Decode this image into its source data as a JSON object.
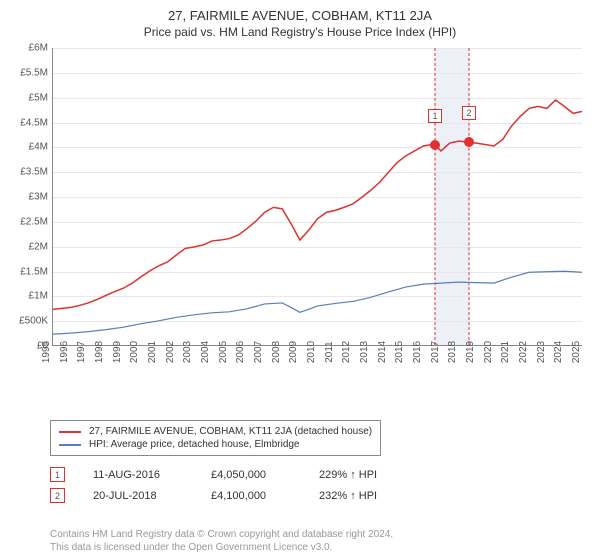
{
  "title": "27, FAIRMILE AVENUE, COBHAM, KT11 2JA",
  "subtitle": "Price paid vs. HM Land Registry's House Price Index (HPI)",
  "chart": {
    "type": "line",
    "background_color": "#ffffff",
    "grid_color": "#e8e8e8",
    "axis_color": "#888888",
    "label_fontsize": 10,
    "label_color": "#555555",
    "x_start_year": 1995,
    "x_end_year": 2025,
    "x_tick_step": 1,
    "ylim": [
      0,
      6000000
    ],
    "ytick_step": 500000,
    "ytick_labels": [
      "£0",
      "£500K",
      "£1M",
      "£1.5M",
      "£2M",
      "£2.5M",
      "£3M",
      "£3.5M",
      "£4M",
      "£4.5M",
      "£5M",
      "£5.5M",
      "£6M"
    ],
    "highlight_band": {
      "x_start": 2016.62,
      "x_end": 2018.55,
      "color": "#edf0f6"
    },
    "series": [
      {
        "id": "property",
        "label": "27, FAIRMILE AVENUE, COBHAM, KT11 2JA (detached house)",
        "color": "#e03030",
        "line_width": 1.5,
        "points": [
          [
            1995.0,
            720000
          ],
          [
            1995.5,
            740000
          ],
          [
            1996.0,
            760000
          ],
          [
            1996.5,
            800000
          ],
          [
            1997.0,
            850000
          ],
          [
            1997.5,
            920000
          ],
          [
            1998.0,
            1000000
          ],
          [
            1998.5,
            1080000
          ],
          [
            1999.0,
            1150000
          ],
          [
            1999.5,
            1250000
          ],
          [
            2000.0,
            1380000
          ],
          [
            2000.5,
            1500000
          ],
          [
            2001.0,
            1600000
          ],
          [
            2001.5,
            1680000
          ],
          [
            2002.0,
            1820000
          ],
          [
            2002.5,
            1950000
          ],
          [
            2003.0,
            1980000
          ],
          [
            2003.5,
            2020000
          ],
          [
            2004.0,
            2100000
          ],
          [
            2004.5,
            2120000
          ],
          [
            2005.0,
            2150000
          ],
          [
            2005.5,
            2220000
          ],
          [
            2006.0,
            2350000
          ],
          [
            2006.5,
            2500000
          ],
          [
            2007.0,
            2680000
          ],
          [
            2007.5,
            2780000
          ],
          [
            2008.0,
            2750000
          ],
          [
            2008.5,
            2450000
          ],
          [
            2009.0,
            2120000
          ],
          [
            2009.5,
            2320000
          ],
          [
            2010.0,
            2550000
          ],
          [
            2010.5,
            2680000
          ],
          [
            2011.0,
            2720000
          ],
          [
            2011.5,
            2780000
          ],
          [
            2012.0,
            2850000
          ],
          [
            2012.5,
            2980000
          ],
          [
            2013.0,
            3120000
          ],
          [
            2013.5,
            3280000
          ],
          [
            2014.0,
            3480000
          ],
          [
            2014.5,
            3680000
          ],
          [
            2015.0,
            3820000
          ],
          [
            2015.5,
            3920000
          ],
          [
            2016.0,
            4020000
          ],
          [
            2016.5,
            4050000
          ],
          [
            2016.62,
            4050000
          ],
          [
            2017.0,
            3920000
          ],
          [
            2017.5,
            4080000
          ],
          [
            2018.0,
            4120000
          ],
          [
            2018.55,
            4100000
          ],
          [
            2019.0,
            4080000
          ],
          [
            2019.5,
            4050000
          ],
          [
            2020.0,
            4020000
          ],
          [
            2020.5,
            4150000
          ],
          [
            2021.0,
            4420000
          ],
          [
            2021.5,
            4620000
          ],
          [
            2022.0,
            4780000
          ],
          [
            2022.5,
            4820000
          ],
          [
            2023.0,
            4780000
          ],
          [
            2023.5,
            4950000
          ],
          [
            2024.0,
            4820000
          ],
          [
            2024.5,
            4680000
          ],
          [
            2025.0,
            4720000
          ]
        ]
      },
      {
        "id": "hpi",
        "label": "HPI: Average price, detached house, Elmbridge",
        "color": "#5a7fb8",
        "line_width": 1.2,
        "points": [
          [
            1995.0,
            220000
          ],
          [
            1996.0,
            240000
          ],
          [
            1997.0,
            270000
          ],
          [
            1998.0,
            310000
          ],
          [
            1999.0,
            360000
          ],
          [
            2000.0,
            430000
          ],
          [
            2001.0,
            490000
          ],
          [
            2002.0,
            560000
          ],
          [
            2003.0,
            610000
          ],
          [
            2004.0,
            650000
          ],
          [
            2005.0,
            670000
          ],
          [
            2006.0,
            730000
          ],
          [
            2007.0,
            830000
          ],
          [
            2008.0,
            850000
          ],
          [
            2008.5,
            760000
          ],
          [
            2009.0,
            660000
          ],
          [
            2009.5,
            720000
          ],
          [
            2010.0,
            790000
          ],
          [
            2011.0,
            840000
          ],
          [
            2012.0,
            880000
          ],
          [
            2013.0,
            960000
          ],
          [
            2014.0,
            1070000
          ],
          [
            2015.0,
            1170000
          ],
          [
            2016.0,
            1230000
          ],
          [
            2017.0,
            1250000
          ],
          [
            2018.0,
            1270000
          ],
          [
            2019.0,
            1260000
          ],
          [
            2020.0,
            1250000
          ],
          [
            2021.0,
            1370000
          ],
          [
            2022.0,
            1470000
          ],
          [
            2023.0,
            1480000
          ],
          [
            2024.0,
            1490000
          ],
          [
            2025.0,
            1470000
          ]
        ]
      }
    ],
    "markers": [
      {
        "id": "1",
        "x": 2016.62,
        "y": 4050000,
        "color": "#e03030"
      },
      {
        "id": "2",
        "x": 2018.55,
        "y": 4100000,
        "color": "#e03030"
      }
    ],
    "marker_badge_border": "#e03030",
    "marker_vline_color": "#e03030"
  },
  "legend": {
    "border_color": "#888888",
    "fontsize": 10
  },
  "sales": [
    {
      "badge": "1",
      "date": "11-AUG-2016",
      "price": "£4,050,000",
      "delta": "229% ↑ HPI"
    },
    {
      "badge": "2",
      "date": "20-JUL-2018",
      "price": "£4,100,000",
      "delta": "232% ↑ HPI"
    }
  ],
  "attribution": {
    "line1": "Contains HM Land Registry data © Crown copyright and database right 2024.",
    "line2": "This data is licensed under the Open Government Licence v3.0."
  }
}
